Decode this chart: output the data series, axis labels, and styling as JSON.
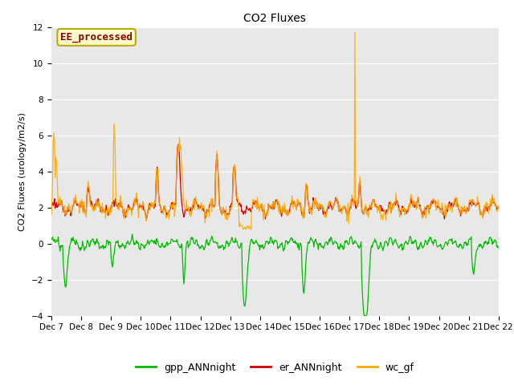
{
  "title": "CO2 Fluxes",
  "ylabel": "CO2 Fluxes (urology/m2/s)",
  "ylim": [
    -4,
    12
  ],
  "yticks": [
    -4,
    -2,
    0,
    2,
    4,
    6,
    8,
    10,
    12
  ],
  "xtick_labels": [
    "Dec 7",
    "Dec 8",
    "Dec 9",
    "Dec 10",
    "Dec 11",
    "Dec 12",
    "Dec 13",
    "Dec 14",
    "Dec 15",
    "Dec 16",
    "Dec 17",
    "Dec 18",
    "Dec 19",
    "Dec 20",
    "Dec 21",
    "Dec 22"
  ],
  "legend_labels": [
    "gpp_ANNnight",
    "er_ANNnight",
    "wc_gf"
  ],
  "legend_colors": [
    "#00bb00",
    "#cc0000",
    "#ffaa00"
  ],
  "annotation_text": "EE_processed",
  "annotation_color": "#880000",
  "annotation_bg": "#ffffcc",
  "annotation_edge": "#bbaa00",
  "bg_color": "#e8e8e8",
  "title_fontsize": 10,
  "label_fontsize": 8,
  "tick_fontsize": 7.5
}
